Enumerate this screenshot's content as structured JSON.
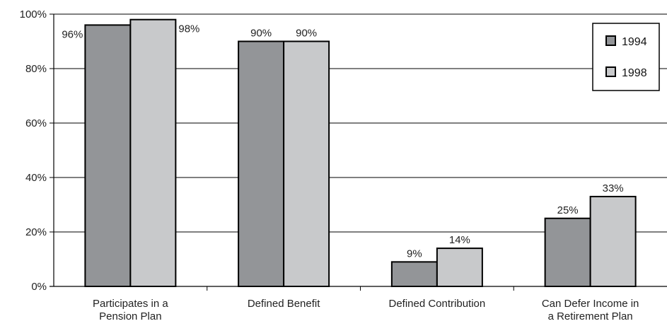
{
  "chart_data": {
    "type": "bar",
    "categories": [
      [
        "Participates in a",
        "Pension Plan"
      ],
      [
        "Defined Benefit"
      ],
      [
        "Defined Contribution"
      ],
      [
        "Can Defer Income in",
        "a Retirement Plan"
      ]
    ],
    "series": [
      {
        "name": "1994",
        "values": [
          96,
          90,
          9,
          25
        ],
        "labels": [
          "96%",
          "90%",
          "9%",
          "25%"
        ],
        "color": "#939598"
      },
      {
        "name": "1998",
        "values": [
          98,
          90,
          14,
          33
        ],
        "labels": [
          "98%",
          "90%",
          "14%",
          "33%"
        ],
        "color": "#c8c9cb"
      }
    ],
    "ylim": [
      0,
      100
    ],
    "yticks": [
      0,
      20,
      40,
      60,
      80,
      100
    ],
    "ytick_labels": [
      "0%",
      "20%",
      "40%",
      "60%",
      "80%",
      "100%"
    ],
    "grid": true,
    "legend": "top-right"
  }
}
